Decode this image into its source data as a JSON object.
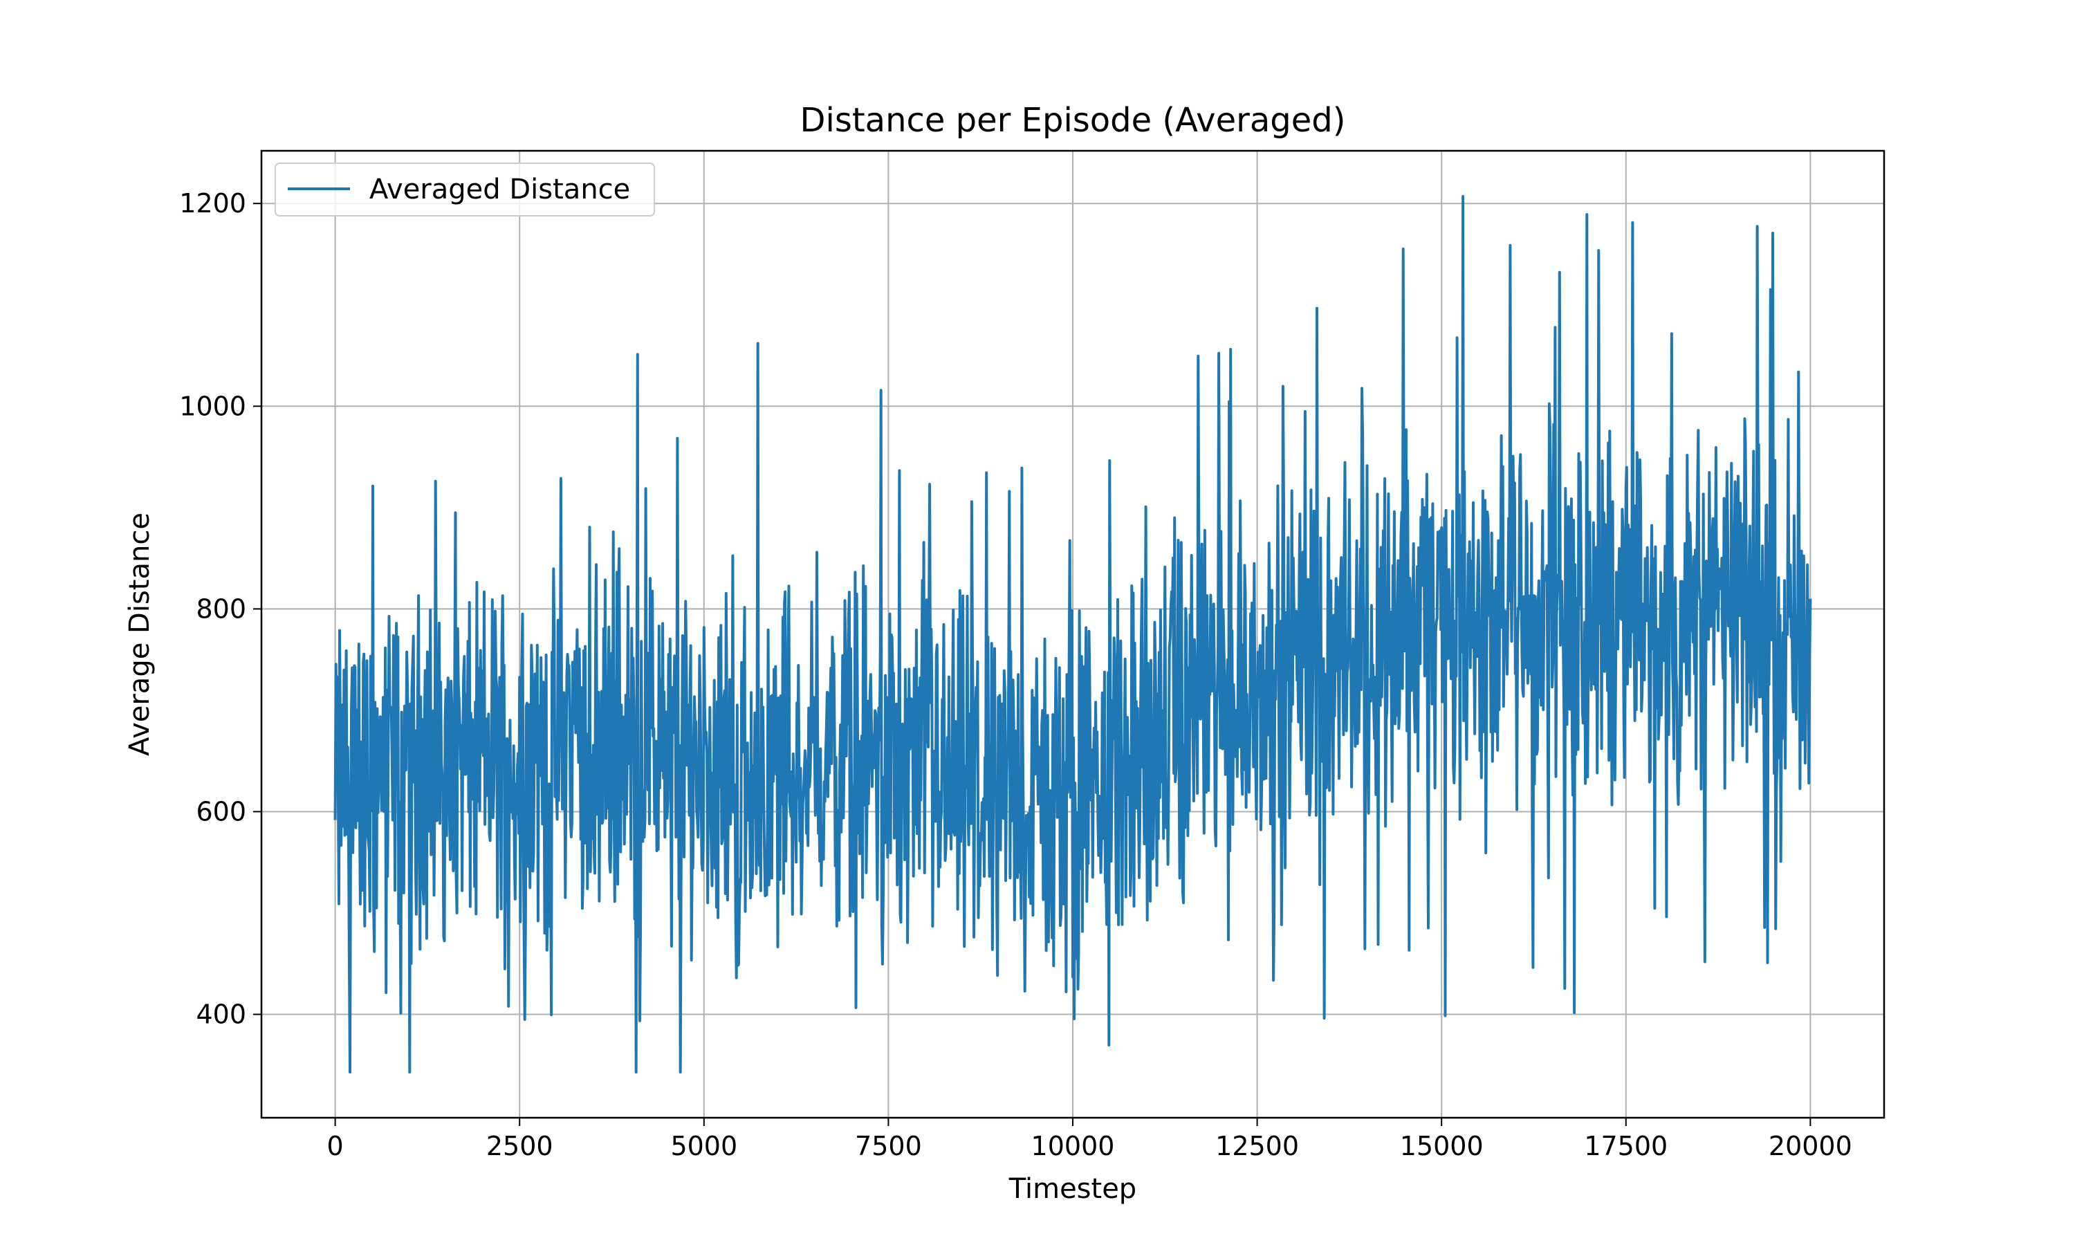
{
  "chart_data": {
    "type": "line",
    "title": "Distance per Episode (Averaged)",
    "xlabel": "Timestep",
    "ylabel": "Average Distance",
    "xlim": [
      -1000,
      21000
    ],
    "ylim": [
      298,
      1252
    ],
    "xticks": [
      0,
      2500,
      5000,
      7500,
      10000,
      12500,
      15000,
      17500,
      20000
    ],
    "yticks": [
      400,
      600,
      800,
      1000,
      1200
    ],
    "grid": true,
    "legend_position": "top-left",
    "colors": {
      "series": "#1f77b4",
      "grid": "#b0b0b0",
      "axes": "#000000"
    },
    "series": [
      {
        "name": "Averaged Distance",
        "x_start": 0,
        "x_step": 100,
        "noise_amplitude": 130,
        "values": [
          600,
          650,
          640,
          660,
          630,
          610,
          640,
          650,
          660,
          640,
          630,
          650,
          660,
          640,
          620,
          650,
          670,
          660,
          650,
          640,
          650,
          660,
          670,
          650,
          640,
          660,
          670,
          660,
          650,
          640,
          650,
          670,
          680,
          670,
          660,
          650,
          660,
          680,
          690,
          670,
          660,
          650,
          660,
          670,
          660,
          650,
          640,
          650,
          660,
          650,
          640,
          650,
          660,
          650,
          640,
          630,
          640,
          650,
          640,
          630,
          640,
          650,
          660,
          650,
          640,
          650,
          660,
          650,
          640,
          650,
          660,
          670,
          660,
          650,
          640,
          650,
          660,
          650,
          640,
          630,
          640,
          650,
          640,
          630,
          620,
          630,
          640,
          630,
          620,
          610,
          620,
          630,
          620,
          610,
          600,
          610,
          620,
          610,
          600,
          600,
          610,
          620,
          630,
          620,
          630,
          640,
          650,
          640,
          650,
          660,
          670,
          660,
          670,
          680,
          690,
          680,
          690,
          700,
          710,
          700,
          710,
          720,
          710,
          720,
          730,
          720,
          730,
          740,
          730,
          740,
          750,
          740,
          750,
          760,
          750,
          760,
          770,
          760,
          770,
          780,
          770,
          780,
          790,
          780,
          790,
          800,
          790,
          780,
          790,
          800,
          790,
          780,
          790,
          800,
          790,
          780,
          790,
          800,
          790,
          780,
          790,
          800,
          790,
          780,
          790,
          800,
          790,
          780,
          790,
          800,
          790,
          780,
          790,
          800,
          790,
          780,
          790,
          800,
          790,
          780,
          790,
          800,
          790,
          780,
          790,
          800,
          810,
          800,
          790,
          800,
          810,
          800,
          790,
          800,
          810,
          800,
          790,
          800,
          810,
          800,
          810
        ]
      }
    ]
  }
}
